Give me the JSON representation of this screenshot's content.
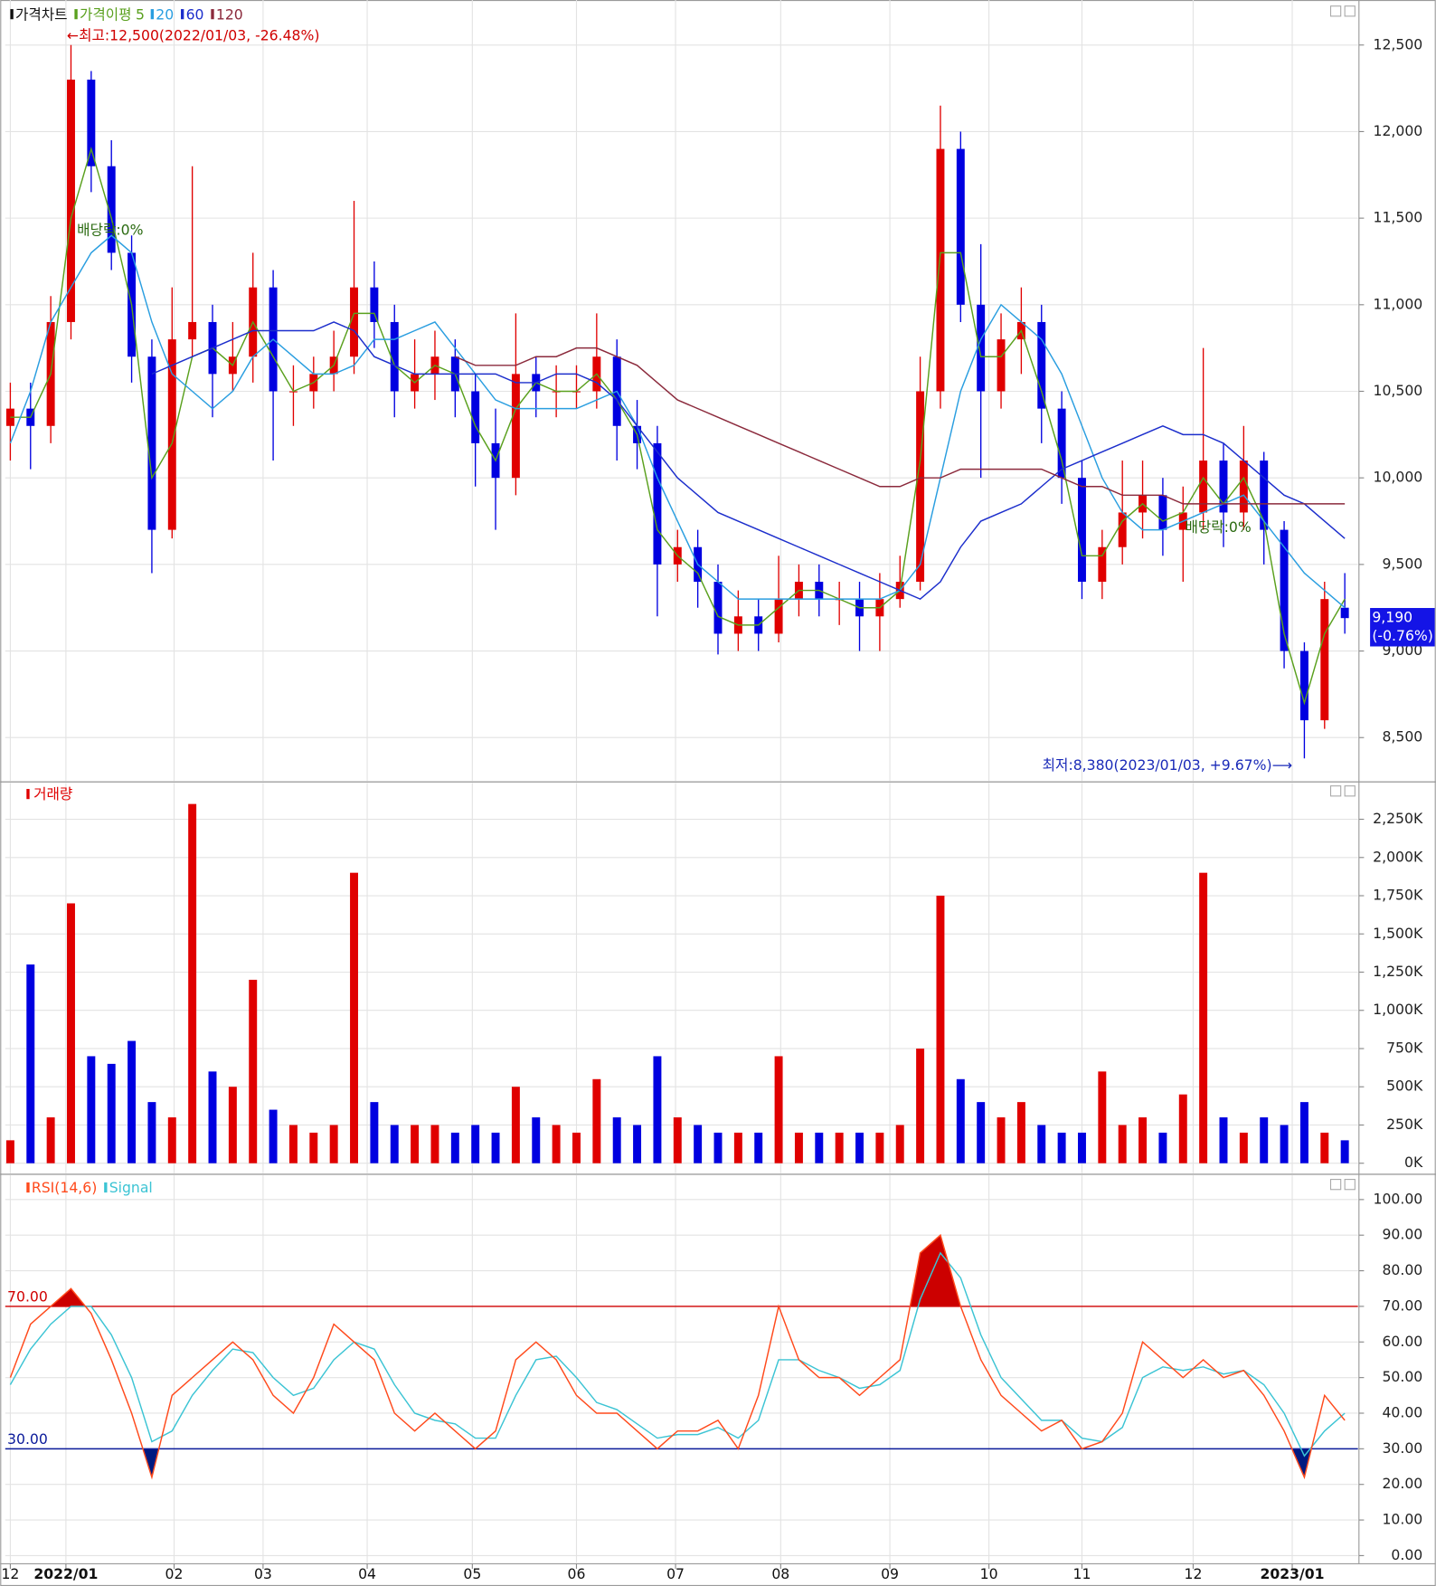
{
  "chart_data": [
    {
      "type": "candlestick",
      "title": "가격차트",
      "ma_label": "가격이평",
      "up_color": "#e00000",
      "down_color": "#0000e0",
      "open": [
        10300,
        10400,
        10300,
        10900,
        12300,
        11800,
        11300,
        10700,
        9700,
        10800,
        10900,
        10600,
        10700,
        11100,
        10500,
        10500,
        10600,
        10700,
        11100,
        10900,
        10500,
        10600,
        10700,
        10500,
        10200,
        10000,
        10600,
        10500,
        10500,
        10500,
        10700,
        10300,
        10200,
        9500,
        9600,
        9400,
        9100,
        9200,
        9100,
        9300,
        9400,
        9300,
        9300,
        9200,
        9300,
        9400,
        10500,
        11900,
        11000,
        10500,
        10800,
        10900,
        10400,
        10000,
        9400,
        9600,
        9800,
        9900,
        9700,
        9800,
        10100,
        9800,
        10100,
        9700,
        9000,
        8600,
        9250
      ],
      "high": [
        10550,
        10550,
        11050,
        12500,
        12350,
        11950,
        11400,
        10800,
        11100,
        11800,
        11000,
        10900,
        11300,
        11200,
        10650,
        10700,
        10850,
        11600,
        11250,
        11000,
        10800,
        10850,
        10800,
        10600,
        10400,
        10950,
        10700,
        10650,
        10650,
        10950,
        10800,
        10450,
        10300,
        9700,
        9700,
        9500,
        9350,
        9300,
        9550,
        9500,
        9500,
        9400,
        9400,
        9450,
        9550,
        10700,
        12150,
        12000,
        11350,
        10950,
        11100,
        11000,
        10500,
        10100,
        9700,
        10100,
        10100,
        10000,
        9950,
        10750,
        10200,
        10300,
        10150,
        9750,
        9050,
        9400,
        9450
      ],
      "low": [
        10100,
        10050,
        10200,
        10800,
        11650,
        11200,
        10550,
        9450,
        9650,
        10700,
        10350,
        10500,
        10550,
        10100,
        10300,
        10400,
        10500,
        10600,
        10750,
        10350,
        10400,
        10450,
        10350,
        9950,
        9700,
        9900,
        10350,
        10350,
        10400,
        10400,
        10100,
        10050,
        9200,
        9400,
        9250,
        8980,
        9000,
        9000,
        9050,
        9200,
        9200,
        9150,
        9000,
        9000,
        9250,
        9350,
        10400,
        10900,
        10000,
        10400,
        10600,
        10200,
        9850,
        9300,
        9300,
        9500,
        9650,
        9550,
        9400,
        9700,
        9600,
        9700,
        9500,
        8900,
        8380,
        8550,
        9100
      ],
      "close": [
        10400,
        10300,
        10900,
        12300,
        11800,
        11300,
        10700,
        9700,
        10800,
        10900,
        10600,
        10700,
        11100,
        10500,
        10500,
        10600,
        10700,
        11100,
        10900,
        10500,
        10600,
        10700,
        10500,
        10200,
        10000,
        10600,
        10500,
        10500,
        10500,
        10700,
        10300,
        10200,
        9500,
        9600,
        9400,
        9100,
        9200,
        9100,
        9300,
        9400,
        9300,
        9300,
        9200,
        9300,
        9400,
        10500,
        11900,
        11000,
        10500,
        10800,
        10900,
        10400,
        10000,
        9400,
        9600,
        9800,
        9900,
        9700,
        9800,
        10100,
        9800,
        10100,
        9700,
        9000,
        8600,
        9300,
        9190
      ],
      "series": [
        {
          "name": "5",
          "color": "#5aa01e",
          "values": [
            10350,
            10350,
            10600,
            11500,
            11900,
            11500,
            11000,
            10000,
            10200,
            10700,
            10750,
            10650,
            10900,
            10700,
            10500,
            10550,
            10650,
            10950,
            10950,
            10650,
            10550,
            10650,
            10600,
            10300,
            10100,
            10400,
            10550,
            10500,
            10500,
            10600,
            10450,
            10250,
            9700,
            9550,
            9450,
            9200,
            9150,
            9150,
            9250,
            9350,
            9350,
            9300,
            9250,
            9250,
            9350,
            10100,
            11300,
            11300,
            10700,
            10700,
            10850,
            10500,
            10100,
            9550,
            9550,
            9750,
            9850,
            9750,
            9800,
            10000,
            9850,
            10000,
            9750,
            9100,
            8700,
            9100,
            9300
          ]
        },
        {
          "name": "20",
          "color": "#2a9ee0",
          "values": [
            10200,
            10500,
            10900,
            11100,
            11300,
            11400,
            11300,
            10900,
            10600,
            10500,
            10400,
            10500,
            10700,
            10800,
            10700,
            10600,
            10600,
            10650,
            10800,
            10800,
            10850,
            10900,
            10750,
            10600,
            10450,
            10400,
            10400,
            10400,
            10400,
            10450,
            10500,
            10300,
            10000,
            9750,
            9500,
            9400,
            9300,
            9300,
            9300,
            9300,
            9300,
            9300,
            9300,
            9300,
            9350,
            9500,
            10000,
            10500,
            10800,
            11000,
            10900,
            10800,
            10600,
            10300,
            10000,
            9800,
            9700,
            9700,
            9750,
            9800,
            9850,
            9900,
            9750,
            9600,
            9450,
            9350,
            9250
          ]
        },
        {
          "name": "60",
          "color": "#1c2ecc",
          "values": [
            null,
            null,
            null,
            null,
            null,
            null,
            null,
            10600,
            10650,
            10700,
            10750,
            10800,
            10850,
            10850,
            10850,
            10850,
            10900,
            10850,
            10700,
            10650,
            10600,
            10600,
            10600,
            10600,
            10600,
            10550,
            10550,
            10600,
            10600,
            10550,
            10450,
            10300,
            10150,
            10000,
            9900,
            9800,
            9750,
            9700,
            9650,
            9600,
            9550,
            9500,
            9450,
            9400,
            9350,
            9300,
            9400,
            9600,
            9750,
            9800,
            9850,
            9950,
            10050,
            10100,
            10150,
            10200,
            10250,
            10300,
            10250,
            10250,
            10200,
            10100,
            10000,
            9900,
            9850,
            9750,
            9650
          ]
        },
        {
          "name": "120",
          "color": "#8b2a3c",
          "values": [
            null,
            null,
            null,
            null,
            null,
            null,
            null,
            null,
            null,
            null,
            null,
            null,
            null,
            null,
            null,
            null,
            null,
            null,
            null,
            null,
            null,
            null,
            10700,
            10650,
            10650,
            10650,
            10700,
            10700,
            10750,
            10750,
            10700,
            10650,
            10550,
            10450,
            10400,
            10350,
            10300,
            10250,
            10200,
            10150,
            10100,
            10050,
            10000,
            9950,
            9950,
            10000,
            10000,
            10050,
            10050,
            10050,
            10050,
            10050,
            10000,
            9950,
            9950,
            9900,
            9900,
            9900,
            9850,
            9850,
            9850,
            9850,
            9850,
            9850,
            9850,
            9850,
            9850
          ]
        }
      ],
      "ylim": [
        8250,
        12760
      ],
      "yticks": [
        {
          "value": 8500,
          "label": "8,500"
        },
        {
          "value": 9000,
          "label": "9,000"
        },
        {
          "value": 9500,
          "label": "9,500"
        },
        {
          "value": 10000,
          "label": "10,000"
        },
        {
          "value": 10500,
          "label": "10,500"
        },
        {
          "value": 11000,
          "label": "11,000"
        },
        {
          "value": 11500,
          "label": "11,500"
        },
        {
          "value": 12000,
          "label": "12,000"
        },
        {
          "value": 12500,
          "label": "12,500"
        }
      ],
      "xlim": [
        -0.25,
        66.65
      ],
      "xticks": [
        0,
        2.75,
        8.1,
        12.5,
        17.65,
        22.85,
        28,
        32.9,
        38.1,
        43.5,
        48.4,
        53,
        58.5,
        63.4
      ],
      "annotations": [
        "←최고:12,500(2022/01/03, -26.48%)",
        "최저:8,380(2023/01/03, +9.67%)⟶",
        "배당락:0%",
        "배당락:0%"
      ],
      "last_label": "9,190",
      "last_change": "(-0.76%)",
      "last_color": "#1414e6",
      "grid": true
    },
    {
      "type": "bar",
      "title": "거래량",
      "up_color": "#e00000",
      "down_color": "#0000e0",
      "values": [
        150,
        1300,
        300,
        1700,
        700,
        650,
        800,
        400,
        300,
        2350,
        600,
        500,
        1200,
        350,
        250,
        200,
        250,
        1900,
        400,
        250,
        250,
        250,
        200,
        250,
        200,
        500,
        300,
        250,
        200,
        550,
        300,
        250,
        700,
        300,
        250,
        200,
        200,
        200,
        700,
        200,
        200,
        200,
        200,
        200,
        250,
        750,
        1750,
        550,
        400,
        300,
        400,
        250,
        200,
        200,
        600,
        250,
        300,
        200,
        450,
        1900,
        300,
        200,
        300,
        250,
        400,
        200,
        150
      ],
      "ylim": [
        -66,
        2488
      ],
      "yticks": [
        {
          "value": 0,
          "label": "0K"
        },
        {
          "value": 250,
          "label": "250K"
        },
        {
          "value": 500,
          "label": "500K"
        },
        {
          "value": 750,
          "label": "750K"
        },
        {
          "value": 1000,
          "label": "1,000K"
        },
        {
          "value": 1250,
          "label": "1,250K"
        },
        {
          "value": 1500,
          "label": "1,500K"
        },
        {
          "value": 1750,
          "label": "1,750K"
        },
        {
          "value": 2000,
          "label": "2,000K"
        },
        {
          "value": 2250,
          "label": "2,250K"
        }
      ],
      "grid": true
    },
    {
      "type": "line",
      "title": "RSI(14,6)",
      "series": [
        {
          "name": "RSI(14,6)",
          "color": "#ff4a1c",
          "values": [
            50,
            65,
            70,
            75,
            68,
            55,
            40,
            22,
            45,
            50,
            55,
            60,
            55,
            45,
            40,
            50,
            65,
            60,
            55,
            40,
            35,
            40,
            35,
            30,
            35,
            55,
            60,
            55,
            45,
            40,
            40,
            35,
            30,
            35,
            35,
            38,
            30,
            45,
            70,
            55,
            50,
            50,
            45,
            50,
            55,
            85,
            90,
            70,
            55,
            45,
            40,
            35,
            38,
            30,
            32,
            40,
            60,
            55,
            50,
            55,
            50,
            52,
            45,
            35,
            22,
            45,
            38
          ]
        },
        {
          "name": "Signal",
          "color": "#3cc4d4",
          "values": [
            48,
            58,
            65,
            70,
            70,
            62,
            50,
            32,
            35,
            45,
            52,
            58,
            57,
            50,
            45,
            47,
            55,
            60,
            58,
            48,
            40,
            38,
            37,
            33,
            33,
            45,
            55,
            56,
            50,
            43,
            41,
            37,
            33,
            34,
            34,
            36,
            33,
            38,
            55,
            55,
            52,
            50,
            47,
            48,
            52,
            72,
            85,
            78,
            62,
            50,
            44,
            38,
            38,
            33,
            32,
            36,
            50,
            53,
            52,
            53,
            51,
            52,
            48,
            40,
            28,
            35,
            40
          ]
        }
      ],
      "levels": [
        {
          "value": 70,
          "label": "70.00",
          "color": "#d00000",
          "fill": "#cc0000"
        },
        {
          "value": 30,
          "label": "30.00",
          "color": "#0a1a9a",
          "fill": "#001a80"
        }
      ],
      "ylim": [
        -2,
        106.8
      ],
      "yticks": [
        {
          "value": 0,
          "label": "0.00"
        },
        {
          "value": 10,
          "label": "10.00"
        },
        {
          "value": 20,
          "label": "20.00"
        },
        {
          "value": 30,
          "label": "30.00"
        },
        {
          "value": 40,
          "label": "40.00"
        },
        {
          "value": 50,
          "label": "50.00"
        },
        {
          "value": 60,
          "label": "60.00"
        },
        {
          "value": 70,
          "label": "70.00"
        },
        {
          "value": 80,
          "label": "80.00"
        },
        {
          "value": 90,
          "label": "90.00"
        },
        {
          "value": 100,
          "label": "100.00"
        }
      ],
      "xticks": [
        {
          "value": 0,
          "label": "12"
        },
        {
          "value": 2.75,
          "label": "2022/01"
        },
        {
          "value": 8.1,
          "label": "02"
        },
        {
          "value": 12.5,
          "label": "03"
        },
        {
          "value": 17.65,
          "label": "04"
        },
        {
          "value": 22.85,
          "label": "05"
        },
        {
          "value": 28,
          "label": "06"
        },
        {
          "value": 32.9,
          "label": "07"
        },
        {
          "value": 38.1,
          "label": "08"
        },
        {
          "value": 43.5,
          "label": "09"
        },
        {
          "value": 48.4,
          "label": "10"
        },
        {
          "value": 53,
          "label": "11"
        },
        {
          "value": 58.5,
          "label": "12"
        },
        {
          "value": 63.4,
          "label": "2023/01"
        }
      ],
      "grid": true
    }
  ]
}
